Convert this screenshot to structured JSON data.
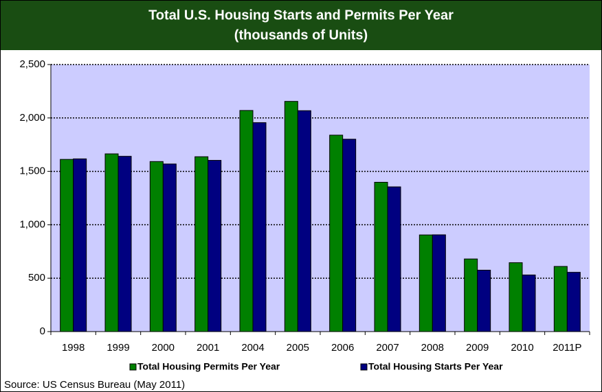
{
  "chart_data": {
    "type": "bar",
    "title": "Total U.S. Housing Starts and Permits Per Year",
    "subtitle": "(thousands of Units)",
    "categories": [
      "1998",
      "1999",
      "2000",
      "2001",
      "2004",
      "2005",
      "2006",
      "2007",
      "2008",
      "2009",
      "2010",
      "2011P"
    ],
    "series": [
      {
        "name": "Total Housing Permits Per Year",
        "color": "#008000",
        "values": [
          1612,
          1664,
          1592,
          1637,
          2070,
          2155,
          1839,
          1398,
          905,
          680,
          645,
          610
        ]
      },
      {
        "name": "Total Housing Starts Per Year",
        "color": "#000080",
        "values": [
          1617,
          1641,
          1569,
          1603,
          1956,
          2068,
          1801,
          1355,
          906,
          575,
          530,
          555
        ]
      }
    ],
    "ylim": [
      0,
      2500
    ],
    "yticks": [
      0,
      500,
      {
        "value": 1000,
        "label": "1,000"
      },
      {
        "value": 1500,
        "label": "1,500"
      },
      {
        "value": 2000,
        "label": "2,000"
      },
      {
        "value": 2500,
        "label": "2,500"
      }
    ],
    "grid": true,
    "legend": "bottom",
    "source": "Source: US Census Bureau (May 2011)"
  }
}
